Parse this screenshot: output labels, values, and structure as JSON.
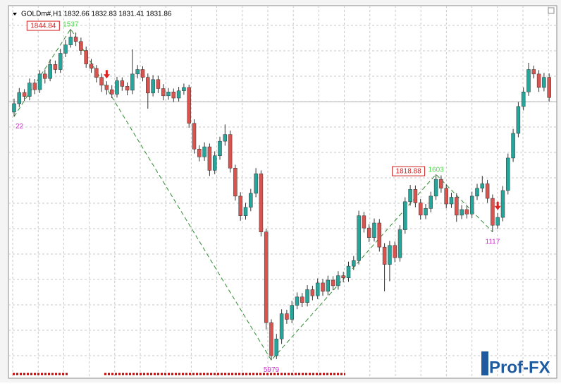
{
  "chart_data": {
    "type": "candlestick",
    "header": "GOLDm#,H1  1832.66 1832.83 1831.41 1831.86",
    "ylim": [
      1784.5,
      1848.5
    ],
    "grid": true,
    "bid": 1831.86,
    "up_color": "#26a69a",
    "down_color": "#d9534f",
    "open": [
      1830.0,
      1831.5,
      1833.5,
      1832.8,
      1835.2,
      1834.0,
      1836.8,
      1836.0,
      1838.5,
      1837.6,
      1840.5,
      1842.0,
      1843.4,
      1842.6,
      1841.0,
      1838.6,
      1837.8,
      1836.2,
      1834.8,
      1834.0,
      1833.2,
      1835.6,
      1834.6,
      1833.9,
      1836.8,
      1837.6,
      1836.2,
      1833.4,
      1835.8,
      1834.2,
      1832.9,
      1833.6,
      1832.5,
      1833.8,
      1834.4,
      1828.0,
      1823.4,
      1822.0,
      1823.8,
      1819.6,
      1822.2,
      1824.8,
      1826.0,
      1820.0,
      1815.0,
      1811.5,
      1813.0,
      1815.5,
      1819.0,
      1808.6,
      1792.4,
      1786.5,
      1789.5,
      1794.0,
      1793.0,
      1795.5,
      1797.0,
      1796.0,
      1798.3,
      1797.2,
      1799.5,
      1798.0,
      1800.0,
      1799.0,
      1800.8,
      1800.4,
      1802.5,
      1803.5,
      1811.5,
      1809.3,
      1807.6,
      1810.2,
      1805.9,
      1802.8,
      1806.2,
      1804.0,
      1809.0,
      1814.0,
      1816.2,
      1813.8,
      1811.6,
      1812.8,
      1815.0,
      1818.0,
      1816.4,
      1813.6,
      1814.8,
      1811.6,
      1812.6,
      1811.8,
      1815.0,
      1816.4,
      1817.2,
      1814.6,
      1809.8,
      1811.2,
      1816.0,
      1821.8,
      1826.2,
      1831.0,
      1833.6,
      1837.6,
      1836.8,
      1834.4,
      1836.2
    ],
    "high": [
      1832.4,
      1834.3,
      1834.1,
      1836.0,
      1835.9,
      1837.5,
      1837.6,
      1839.4,
      1839.2,
      1841.3,
      1842.9,
      1844.84,
      1844.2,
      1843.3,
      1841.7,
      1839.5,
      1838.4,
      1836.9,
      1835.5,
      1834.8,
      1836.3,
      1836.2,
      1835.3,
      1841.2,
      1838.4,
      1838.2,
      1836.9,
      1836.6,
      1836.5,
      1835.0,
      1834.3,
      1834.2,
      1834.5,
      1835.1,
      1834.9,
      1828.7,
      1824.1,
      1824.6,
      1824.4,
      1823.0,
      1825.6,
      1827.8,
      1826.7,
      1820.6,
      1815.7,
      1813.8,
      1816.3,
      1820.0,
      1819.6,
      1809.2,
      1793.0,
      1790.4,
      1794.8,
      1794.7,
      1796.3,
      1797.8,
      1797.7,
      1799.1,
      1799.0,
      1800.3,
      1800.2,
      1800.8,
      1800.7,
      1801.6,
      1801.5,
      1803.3,
      1804.3,
      1812.4,
      1812.2,
      1810.0,
      1811.0,
      1810.9,
      1806.6,
      1807.0,
      1806.9,
      1809.8,
      1814.8,
      1817.0,
      1816.9,
      1814.5,
      1813.6,
      1815.8,
      1818.88,
      1818.7,
      1817.1,
      1815.6,
      1815.5,
      1813.4,
      1813.3,
      1815.8,
      1817.2,
      1818.6,
      1817.9,
      1815.3,
      1812.0,
      1816.8,
      1822.6,
      1827.0,
      1831.8,
      1834.4,
      1838.8,
      1838.3,
      1837.5,
      1837.0,
      1836.9
    ],
    "low": [
      1829.2,
      1830.9,
      1832.0,
      1832.1,
      1833.2,
      1833.4,
      1835.1,
      1835.5,
      1836.9,
      1837.0,
      1839.8,
      1841.5,
      1841.8,
      1840.2,
      1837.9,
      1837.0,
      1835.3,
      1833.6,
      1833.1,
      1832.5,
      1832.6,
      1833.8,
      1833.0,
      1833.2,
      1836.0,
      1835.5,
      1830.6,
      1832.8,
      1833.4,
      1832.1,
      1832.2,
      1831.8,
      1831.9,
      1833.1,
      1827.2,
      1822.6,
      1821.2,
      1821.3,
      1818.6,
      1818.9,
      1821.5,
      1824.0,
      1819.2,
      1814.2,
      1810.6,
      1810.8,
      1812.3,
      1814.8,
      1807.8,
      1791.2,
      1785.7,
      1785.9,
      1788.6,
      1792.2,
      1792.3,
      1794.8,
      1795.2,
      1795.3,
      1796.4,
      1796.6,
      1797.2,
      1797.3,
      1798.2,
      1798.3,
      1799.6,
      1799.7,
      1801.8,
      1802.8,
      1808.5,
      1806.8,
      1806.9,
      1805.1,
      1798.0,
      1799.8,
      1803.2,
      1803.3,
      1808.3,
      1813.3,
      1813.0,
      1810.8,
      1810.9,
      1812.1,
      1814.3,
      1815.6,
      1812.8,
      1812.9,
      1810.4,
      1810.9,
      1811.0,
      1811.1,
      1814.3,
      1815.7,
      1813.8,
      1808.6,
      1809.1,
      1810.5,
      1815.3,
      1821.1,
      1825.5,
      1830.3,
      1832.9,
      1836.0,
      1833.6,
      1833.7,
      1831.9
    ],
    "close": [
      1831.5,
      1833.5,
      1832.8,
      1835.2,
      1834.0,
      1836.8,
      1836.0,
      1838.5,
      1837.6,
      1840.5,
      1842.0,
      1843.4,
      1842.6,
      1841.0,
      1838.6,
      1837.8,
      1836.2,
      1834.8,
      1834.0,
      1833.2,
      1835.6,
      1834.6,
      1833.9,
      1836.8,
      1837.6,
      1836.2,
      1833.4,
      1835.8,
      1834.2,
      1832.9,
      1833.6,
      1832.5,
      1833.8,
      1834.4,
      1828.0,
      1823.4,
      1822.0,
      1823.8,
      1819.6,
      1822.2,
      1824.8,
      1826.0,
      1820.0,
      1815.0,
      1811.5,
      1813.0,
      1815.5,
      1819.0,
      1808.6,
      1792.4,
      1786.5,
      1789.5,
      1794.0,
      1793.0,
      1795.5,
      1797.0,
      1796.0,
      1798.3,
      1797.2,
      1799.5,
      1798.0,
      1800.0,
      1799.0,
      1800.8,
      1800.4,
      1802.5,
      1803.5,
      1811.5,
      1809.3,
      1807.6,
      1810.2,
      1805.9,
      1802.8,
      1806.2,
      1804.0,
      1809.0,
      1814.0,
      1816.2,
      1813.8,
      1811.6,
      1812.8,
      1815.0,
      1818.0,
      1816.4,
      1813.6,
      1814.8,
      1811.6,
      1812.6,
      1811.8,
      1815.0,
      1816.4,
      1817.2,
      1814.6,
      1809.8,
      1811.2,
      1816.0,
      1821.8,
      1826.2,
      1831.0,
      1833.6,
      1837.6,
      1836.8,
      1834.4,
      1836.2,
      1832.6
    ],
    "zigzag": {
      "color": "#2e8b2e",
      "x": [
        0,
        11,
        50,
        82,
        93
      ],
      "values": [
        1829.2,
        1844.84,
        1785.7,
        1818.88,
        1808.6
      ],
      "labels": [
        "22",
        "1537",
        "5979",
        "1603",
        "1117"
      ]
    },
    "price_labels": {
      "x": [
        11,
        82
      ],
      "values": [
        1844.84,
        1818.88
      ]
    },
    "signals": {
      "color": "#e02020",
      "x": [
        18,
        94
      ]
    },
    "watermark": "Prof-FX"
  }
}
